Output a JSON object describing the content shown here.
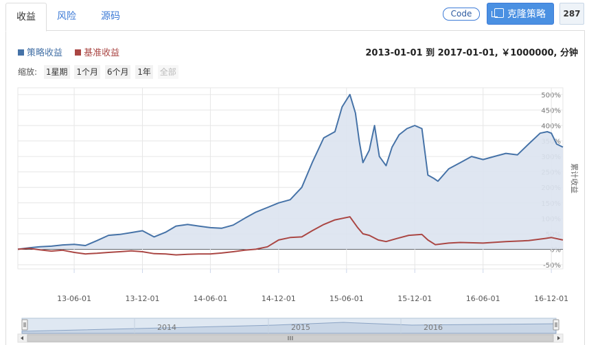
{
  "tabs": [
    {
      "label": "收益",
      "active": true
    },
    {
      "label": "风险",
      "active": false
    },
    {
      "label": "源码",
      "active": false
    }
  ],
  "toolbar": {
    "code_label": "Code",
    "clone_label": "克隆策略",
    "count": "287"
  },
  "legend": [
    {
      "name": "策略收益",
      "color": "#4572a7"
    },
    {
      "name": "基准收益",
      "color": "#aa4643"
    }
  ],
  "info_text": "2013-01-01 到 2017-01-01, ￥1000000, 分钟",
  "zoom": {
    "label": "缩放:",
    "buttons": [
      "1星期",
      "1个月",
      "6个月",
      "1年",
      "全部"
    ],
    "disabled": "全部"
  },
  "chart_data": {
    "type": "line",
    "title": "",
    "xlabel": "",
    "ylabel": "累计收益",
    "x_range": [
      "2013-01-01",
      "2017-01-01"
    ],
    "x_ticks": [
      "13-06-01",
      "13-12-01",
      "14-06-01",
      "14-12-01",
      "15-06-01",
      "15-12-01",
      "16-06-01",
      "16-12-01"
    ],
    "x_tick_dates": [
      "2013-06-01",
      "2013-12-01",
      "2014-06-01",
      "2014-12-01",
      "2015-06-01",
      "2015-12-01",
      "2016-06-01",
      "2016-12-01"
    ],
    "y_ticks": [
      "-50%",
      "0%",
      "50%",
      "100%",
      "150%",
      "200%",
      "250%",
      "300%",
      "350%",
      "400%",
      "450%",
      "500%"
    ],
    "ylim": [
      -50,
      500
    ],
    "grid": true,
    "legend_position": "top-left",
    "series": [
      {
        "name": "策略收益",
        "color": "#4572a7",
        "fill": "#dbe3ef",
        "points": [
          [
            "2013-01-01",
            0
          ],
          [
            "2013-02-01",
            5
          ],
          [
            "2013-03-01",
            8
          ],
          [
            "2013-04-01",
            10
          ],
          [
            "2013-05-01",
            14
          ],
          [
            "2013-06-01",
            16
          ],
          [
            "2013-07-01",
            12
          ],
          [
            "2013-08-01",
            28
          ],
          [
            "2013-09-01",
            45
          ],
          [
            "2013-10-01",
            48
          ],
          [
            "2013-11-01",
            54
          ],
          [
            "2013-12-01",
            60
          ],
          [
            "2014-01-01",
            40
          ],
          [
            "2014-02-01",
            55
          ],
          [
            "2014-03-01",
            75
          ],
          [
            "2014-04-01",
            80
          ],
          [
            "2014-05-01",
            75
          ],
          [
            "2014-06-01",
            70
          ],
          [
            "2014-07-01",
            68
          ],
          [
            "2014-08-01",
            78
          ],
          [
            "2014-09-01",
            100
          ],
          [
            "2014-10-01",
            120
          ],
          [
            "2014-11-01",
            135
          ],
          [
            "2014-12-01",
            150
          ],
          [
            "2015-01-01",
            160
          ],
          [
            "2015-02-01",
            200
          ],
          [
            "2015-03-01",
            280
          ],
          [
            "2015-04-01",
            360
          ],
          [
            "2015-05-01",
            380
          ],
          [
            "2015-05-20",
            460
          ],
          [
            "2015-06-10",
            500
          ],
          [
            "2015-06-25",
            440
          ],
          [
            "2015-07-05",
            350
          ],
          [
            "2015-07-15",
            280
          ],
          [
            "2015-08-01",
            320
          ],
          [
            "2015-08-15",
            400
          ],
          [
            "2015-08-28",
            300
          ],
          [
            "2015-09-15",
            270
          ],
          [
            "2015-10-01",
            330
          ],
          [
            "2015-10-20",
            370
          ],
          [
            "2015-11-10",
            390
          ],
          [
            "2015-12-01",
            400
          ],
          [
            "2015-12-20",
            390
          ],
          [
            "2016-01-05",
            240
          ],
          [
            "2016-01-20",
            230
          ],
          [
            "2016-02-01",
            220
          ],
          [
            "2016-03-01",
            260
          ],
          [
            "2016-04-01",
            280
          ],
          [
            "2016-05-01",
            300
          ],
          [
            "2016-06-01",
            290
          ],
          [
            "2016-07-01",
            300
          ],
          [
            "2016-08-01",
            310
          ],
          [
            "2016-09-01",
            305
          ],
          [
            "2016-10-01",
            340
          ],
          [
            "2016-11-01",
            375
          ],
          [
            "2016-11-20",
            380
          ],
          [
            "2016-12-01",
            375
          ],
          [
            "2016-12-15",
            340
          ],
          [
            "2017-01-01",
            330
          ]
        ]
      },
      {
        "name": "基准收益",
        "color": "#aa4643",
        "points": [
          [
            "2013-01-01",
            0
          ],
          [
            "2013-02-01",
            3
          ],
          [
            "2013-03-01",
            -2
          ],
          [
            "2013-04-01",
            -6
          ],
          [
            "2013-05-01",
            -3
          ],
          [
            "2013-06-01",
            -10
          ],
          [
            "2013-07-01",
            -15
          ],
          [
            "2013-08-01",
            -13
          ],
          [
            "2013-09-01",
            -10
          ],
          [
            "2013-10-01",
            -8
          ],
          [
            "2013-11-01",
            -5
          ],
          [
            "2013-12-01",
            -8
          ],
          [
            "2014-01-01",
            -14
          ],
          [
            "2014-02-01",
            -15
          ],
          [
            "2014-03-01",
            -18
          ],
          [
            "2014-04-01",
            -16
          ],
          [
            "2014-05-01",
            -15
          ],
          [
            "2014-06-01",
            -15
          ],
          [
            "2014-07-01",
            -12
          ],
          [
            "2014-08-01",
            -8
          ],
          [
            "2014-09-01",
            -3
          ],
          [
            "2014-10-01",
            0
          ],
          [
            "2014-11-01",
            8
          ],
          [
            "2014-12-01",
            30
          ],
          [
            "2015-01-01",
            38
          ],
          [
            "2015-02-01",
            40
          ],
          [
            "2015-03-01",
            60
          ],
          [
            "2015-04-01",
            80
          ],
          [
            "2015-05-01",
            95
          ],
          [
            "2015-06-10",
            105
          ],
          [
            "2015-07-01",
            70
          ],
          [
            "2015-07-15",
            50
          ],
          [
            "2015-08-01",
            45
          ],
          [
            "2015-08-25",
            30
          ],
          [
            "2015-09-15",
            25
          ],
          [
            "2015-10-15",
            35
          ],
          [
            "2015-11-15",
            45
          ],
          [
            "2015-12-20",
            48
          ],
          [
            "2016-01-05",
            30
          ],
          [
            "2016-01-25",
            15
          ],
          [
            "2016-03-01",
            20
          ],
          [
            "2016-04-01",
            22
          ],
          [
            "2016-06-01",
            20
          ],
          [
            "2016-08-01",
            25
          ],
          [
            "2016-10-01",
            28
          ],
          [
            "2016-11-15",
            35
          ],
          [
            "2016-12-01",
            38
          ],
          [
            "2017-01-01",
            30
          ]
        ]
      }
    ],
    "navigator": {
      "labels": [
        "2014",
        "2015",
        "2016"
      ]
    }
  }
}
